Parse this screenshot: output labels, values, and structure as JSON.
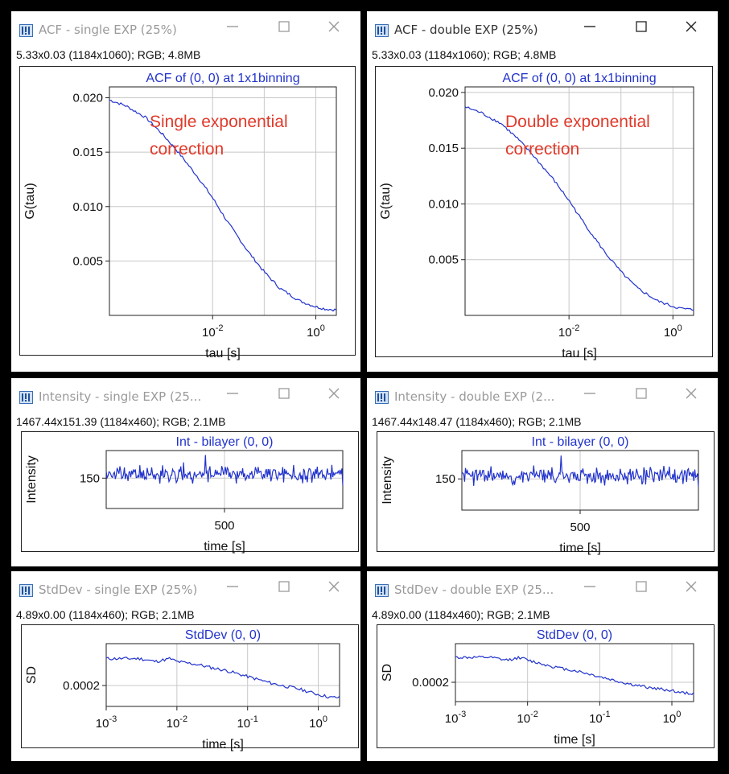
{
  "windows": [
    {
      "id": "acf-single",
      "title": "ACF - single EXP (25%)",
      "info": "5.33x0.03   (1184x1060); RGB; 4.8MB",
      "active": false
    },
    {
      "id": "acf-double",
      "title": "ACF - double EXP (25%)",
      "info": "5.33x0.03   (1184x1060); RGB; 4.8MB",
      "active": true
    },
    {
      "id": "int-single",
      "title": "Intensity - single EXP (25...",
      "info": "1467.44x151.39   (1184x460); RGB; 2.1MB",
      "active": false
    },
    {
      "id": "int-double",
      "title": "Intensity - double EXP (2...",
      "info": "1467.44x148.47   (1184x460); RGB; 2.1MB",
      "active": false
    },
    {
      "id": "sd-single",
      "title": "StdDev - single EXP (25%)",
      "info": "4.89x0.00   (1184x460); RGB; 2.1MB",
      "active": false
    },
    {
      "id": "sd-double",
      "title": "StdDev - double EXP (25...",
      "info": "4.89x0.00   (1184x460); RGB; 2.1MB",
      "active": false
    }
  ],
  "window_controls": {
    "minimize": "—",
    "maximize": "☐",
    "close": "✕"
  },
  "colors": {
    "series": "#2233cc",
    "annotation": "#e03a2a",
    "grid": "#c8c8c8",
    "inactive_title": "#9a9a9a"
  },
  "icons": {
    "app": "imagej-icon",
    "minimize": "minimize-icon",
    "maximize": "maximize-icon",
    "close": "close-icon"
  },
  "chart_data": [
    {
      "id": "acf-single",
      "type": "line",
      "title": "ACF of (0, 0) at 1x1binning",
      "xlabel": "tau [s]",
      "ylabel": "G(tau)",
      "xscale": "log",
      "xlim": [
        0.0001,
        2.5
      ],
      "ylim": [
        0,
        0.021
      ],
      "xticks": [
        {
          "exp": "-2",
          "value": 0.01
        },
        {
          "exp": "0",
          "value": 1
        }
      ],
      "yticks": [
        0.005,
        0.01,
        0.015,
        0.02
      ],
      "ytick_labels": [
        "0.005",
        "0.010",
        "0.015",
        "0.020"
      ],
      "grid": true,
      "annotation": [
        "Single exponential",
        "correction"
      ],
      "x": [
        0.0001,
        0.0002,
        0.0005,
        0.001,
        0.002,
        0.005,
        0.01,
        0.02,
        0.05,
        0.1,
        0.2,
        0.5,
        1,
        1.5,
        2.5
      ],
      "y": [
        0.0198,
        0.0193,
        0.0182,
        0.0168,
        0.0152,
        0.0128,
        0.0108,
        0.0085,
        0.0058,
        0.004,
        0.0025,
        0.0013,
        0.0008,
        0.0006,
        0.0005
      ]
    },
    {
      "id": "acf-double",
      "type": "line",
      "title": "ACF of (0, 0) at 1x1binning",
      "xlabel": "tau [s]",
      "ylabel": "G(tau)",
      "xscale": "log",
      "xlim": [
        0.0001,
        2.5
      ],
      "ylim": [
        0,
        0.0205
      ],
      "xticks": [
        {
          "exp": "-2",
          "value": 0.01
        },
        {
          "exp": "0",
          "value": 1
        }
      ],
      "yticks": [
        0.005,
        0.01,
        0.015,
        0.02
      ],
      "ytick_labels": [
        "0.005",
        "0.010",
        "0.015",
        "0.020"
      ],
      "grid": true,
      "annotation": [
        "Double exponential",
        "correction"
      ],
      "x": [
        0.0001,
        0.0002,
        0.0005,
        0.001,
        0.002,
        0.005,
        0.01,
        0.02,
        0.05,
        0.1,
        0.2,
        0.5,
        1,
        1.5,
        2.5
      ],
      "y": [
        0.0187,
        0.0182,
        0.0172,
        0.0159,
        0.0144,
        0.0122,
        0.0103,
        0.0082,
        0.0056,
        0.0039,
        0.0025,
        0.0013,
        0.0008,
        0.0006,
        0.0005
      ]
    },
    {
      "id": "int-single",
      "type": "line",
      "title": "Int - bilayer (0, 0)",
      "xlabel": "time [s]",
      "ylabel": "Intensity",
      "xscale": "linear",
      "xlim": [
        0,
        1000
      ],
      "ylim": [
        139,
        160
      ],
      "xticks": [
        {
          "label": "500",
          "value": 500
        }
      ],
      "yticks": [
        150
      ],
      "ytick_labels": [
        "150"
      ],
      "grid": true,
      "level": 151.39,
      "noise": 2.3,
      "samples": 260,
      "seed": 11
    },
    {
      "id": "int-double",
      "type": "line",
      "title": "Int - bilayer (0, 0)",
      "xlabel": "time [s]",
      "ylabel": "Intensity",
      "xscale": "linear",
      "xlim": [
        0,
        1000
      ],
      "ylim": [
        139,
        160
      ],
      "xticks": [
        {
          "label": "500",
          "value": 500
        }
      ],
      "yticks": [
        150
      ],
      "ytick_labels": [
        "150"
      ],
      "grid": true,
      "level": 151.2,
      "noise": 2.3,
      "samples": 260,
      "seed": 23
    },
    {
      "id": "sd-single",
      "type": "line",
      "title": "StdDev (0, 0)",
      "xlabel": "time [s]",
      "ylabel": "SD",
      "xscale": "log",
      "xlim": [
        0.001,
        2
      ],
      "ylim": [
        0.00013,
        0.00034
      ],
      "xticks": [
        {
          "exp": "-3",
          "value": 0.001
        },
        {
          "exp": "-2",
          "value": 0.01
        },
        {
          "exp": "-1",
          "value": 0.1
        },
        {
          "exp": "0",
          "value": 1
        }
      ],
      "yticks": [
        0.0002
      ],
      "ytick_labels": [
        "0.0002"
      ],
      "grid": true,
      "x": [
        0.001,
        0.002,
        0.003,
        0.005,
        0.008,
        0.01,
        0.02,
        0.03,
        0.05,
        0.1,
        0.2,
        0.3,
        0.5,
        1,
        1.5,
        2
      ],
      "y": [
        0.00029,
        0.00029,
        0.00029,
        0.00028,
        0.00029,
        0.00028,
        0.00027,
        0.00026,
        0.00025,
        0.00023,
        0.00021,
        0.0002,
        0.00019,
        0.00017,
        0.00016,
        0.00016
      ]
    },
    {
      "id": "sd-double",
      "type": "line",
      "title": "StdDev (0, 0)",
      "xlabel": "time [s]",
      "ylabel": "SD",
      "xscale": "log",
      "xlim": [
        0.001,
        2
      ],
      "ylim": [
        0.00013,
        0.00034
      ],
      "xticks": [
        {
          "exp": "-3",
          "value": 0.001
        },
        {
          "exp": "-2",
          "value": 0.01
        },
        {
          "exp": "-1",
          "value": 0.1
        },
        {
          "exp": "0",
          "value": 1
        }
      ],
      "yticks": [
        0.0002
      ],
      "ytick_labels": [
        "0.0002"
      ],
      "grid": true,
      "x": [
        0.001,
        0.002,
        0.003,
        0.005,
        0.008,
        0.01,
        0.02,
        0.03,
        0.05,
        0.1,
        0.2,
        0.3,
        0.5,
        1,
        1.5,
        2
      ],
      "y": [
        0.00029,
        0.00029,
        0.00029,
        0.00028,
        0.00029,
        0.00028,
        0.00026,
        0.00025,
        0.00024,
        0.00022,
        0.0002,
        0.00019,
        0.00018,
        0.00017,
        0.00016,
        0.00016
      ]
    }
  ]
}
